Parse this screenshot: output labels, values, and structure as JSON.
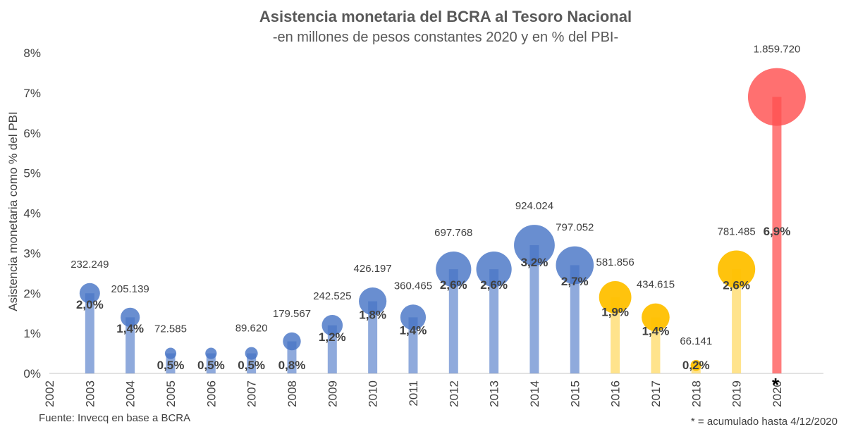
{
  "chart_data": {
    "type": "bubble",
    "title": "Asistencia monetaria del BCRA al Tesoro Nacional",
    "subtitle": "-en millones de pesos constantes 2020 y en % del PBI-",
    "ylabel": "Asistencia monetaria como % del PBI",
    "xlabel": "",
    "ylim": [
      0,
      8
    ],
    "yticks": [
      "0%",
      "1%",
      "2%",
      "3%",
      "4%",
      "5%",
      "6%",
      "7%",
      "8%"
    ],
    "categories": [
      "2002",
      "2003",
      "2004",
      "2005",
      "2006",
      "2007",
      "2008",
      "2009",
      "2010",
      "2011",
      "2012",
      "2013",
      "2014",
      "2015",
      "2016",
      "2017",
      "2018",
      "2019",
      "2020"
    ],
    "points": [
      {
        "year": "2003",
        "pct": 2.0,
        "pct_label": "2,0%",
        "amount_label": "232.249",
        "color": "#4472C4"
      },
      {
        "year": "2004",
        "pct": 1.4,
        "pct_label": "1,4%",
        "amount_label": "205.139",
        "color": "#4472C4"
      },
      {
        "year": "2005",
        "pct": 0.5,
        "pct_label": "0,5%",
        "amount_label": "72.585",
        "color": "#4472C4"
      },
      {
        "year": "2006",
        "pct": 0.5,
        "pct_label": "0,5%",
        "amount_label": "",
        "color": "#4472C4"
      },
      {
        "year": "2007",
        "pct": 0.5,
        "pct_label": "0,5%",
        "amount_label": "89.620",
        "color": "#4472C4"
      },
      {
        "year": "2008",
        "pct": 0.8,
        "pct_label": "0,8%",
        "amount_label": "179.567",
        "color": "#4472C4"
      },
      {
        "year": "2009",
        "pct": 1.2,
        "pct_label": "1,2%",
        "amount_label": "242.525",
        "color": "#4472C4"
      },
      {
        "year": "2010",
        "pct": 1.8,
        "pct_label": "1,8%",
        "amount_label": "426.197",
        "color": "#4472C4"
      },
      {
        "year": "2011",
        "pct": 1.4,
        "pct_label": "1,4%",
        "amount_label": "360.465",
        "color": "#4472C4"
      },
      {
        "year": "2012",
        "pct": 2.6,
        "pct_label": "2,6%",
        "amount_label": "697.768",
        "color": "#4472C4"
      },
      {
        "year": "2013",
        "pct": 2.6,
        "pct_label": "2,6%",
        "amount_label": "",
        "color": "#4472C4"
      },
      {
        "year": "2014",
        "pct": 3.2,
        "pct_label": "3,2%",
        "amount_label": "924.024",
        "color": "#4472C4"
      },
      {
        "year": "2015",
        "pct": 2.7,
        "pct_label": "2,7%",
        "amount_label": "797.052",
        "color": "#4472C4"
      },
      {
        "year": "2016",
        "pct": 1.9,
        "pct_label": "1,9%",
        "amount_label": "581.856",
        "color": "#FFC000"
      },
      {
        "year": "2017",
        "pct": 1.4,
        "pct_label": "1,4%",
        "amount_label": "434.615",
        "color": "#FFC000"
      },
      {
        "year": "2018",
        "pct": 0.2,
        "pct_label": "0,2%",
        "amount_label": "66.141",
        "color": "#FFC000"
      },
      {
        "year": "2019",
        "pct": 2.6,
        "pct_label": "2,6%",
        "amount_label": "781.485",
        "color": "#FFC000"
      },
      {
        "year": "2020",
        "pct": 6.9,
        "pct_label": "6,9%",
        "amount_label": "1.859.720",
        "color": "#FF5050"
      }
    ],
    "grid": false,
    "legend": "none"
  },
  "annotations": {
    "asterisk": "*",
    "source": "Fuente: Invecq en base a BCRA",
    "note": "* = acumulado hasta 4/12/2020"
  }
}
